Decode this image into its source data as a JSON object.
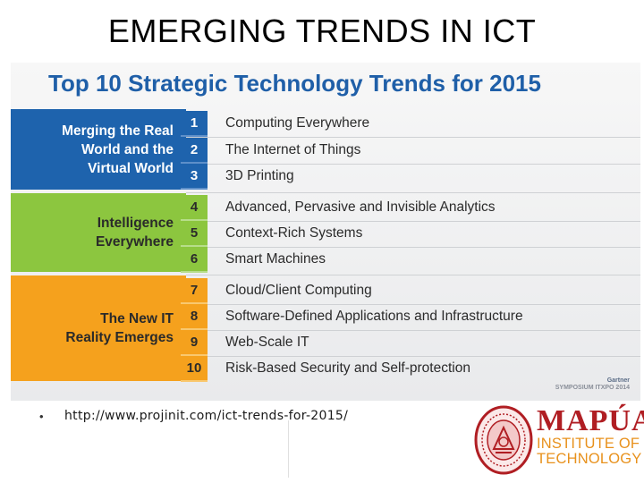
{
  "slide": {
    "title": "EMERGING TRENDS IN ICT"
  },
  "infographic": {
    "heading": "Top 10 Strategic Technology Trends for 2015",
    "groups": [
      {
        "label": "Merging the Real\nWorld and the\nVirtual World",
        "color": "#1e63ad"
      },
      {
        "label": "Intelligence\nEverywhere",
        "color": "#8cc63f"
      },
      {
        "label": "The New IT\nReality Emerges",
        "color": "#f5a11d"
      }
    ],
    "trends": [
      {
        "number": "1",
        "text": "Computing Everywhere"
      },
      {
        "number": "2",
        "text": "The Internet of Things"
      },
      {
        "number": "3",
        "text": "3D Printing"
      },
      {
        "number": "4",
        "text": "Advanced, Pervasive and Invisible Analytics"
      },
      {
        "number": "5",
        "text": "Context-Rich Systems"
      },
      {
        "number": "6",
        "text": "Smart Machines"
      },
      {
        "number": "7",
        "text": "Cloud/Client Computing"
      },
      {
        "number": "8",
        "text": "Software-Defined Applications and Infrastructure"
      },
      {
        "number": "9",
        "text": "Web-Scale IT"
      },
      {
        "number": "10",
        "text": "Risk-Based Security and Self-protection"
      }
    ],
    "credit_line1": "Gartner",
    "credit_line2": "SYMPOSIUM ITXPO 2014"
  },
  "footer": {
    "bullet": "•",
    "url": "http://www.projinit.com/ict-trends-for-2015/",
    "logo_main": "MAPÚA",
    "logo_line2": "INSTITUTE OF",
    "logo_line3": "TECHNOLOGY",
    "seal_icon": "university-seal-icon",
    "brand_color": "#b01e23",
    "accent_color": "#e8911c"
  }
}
